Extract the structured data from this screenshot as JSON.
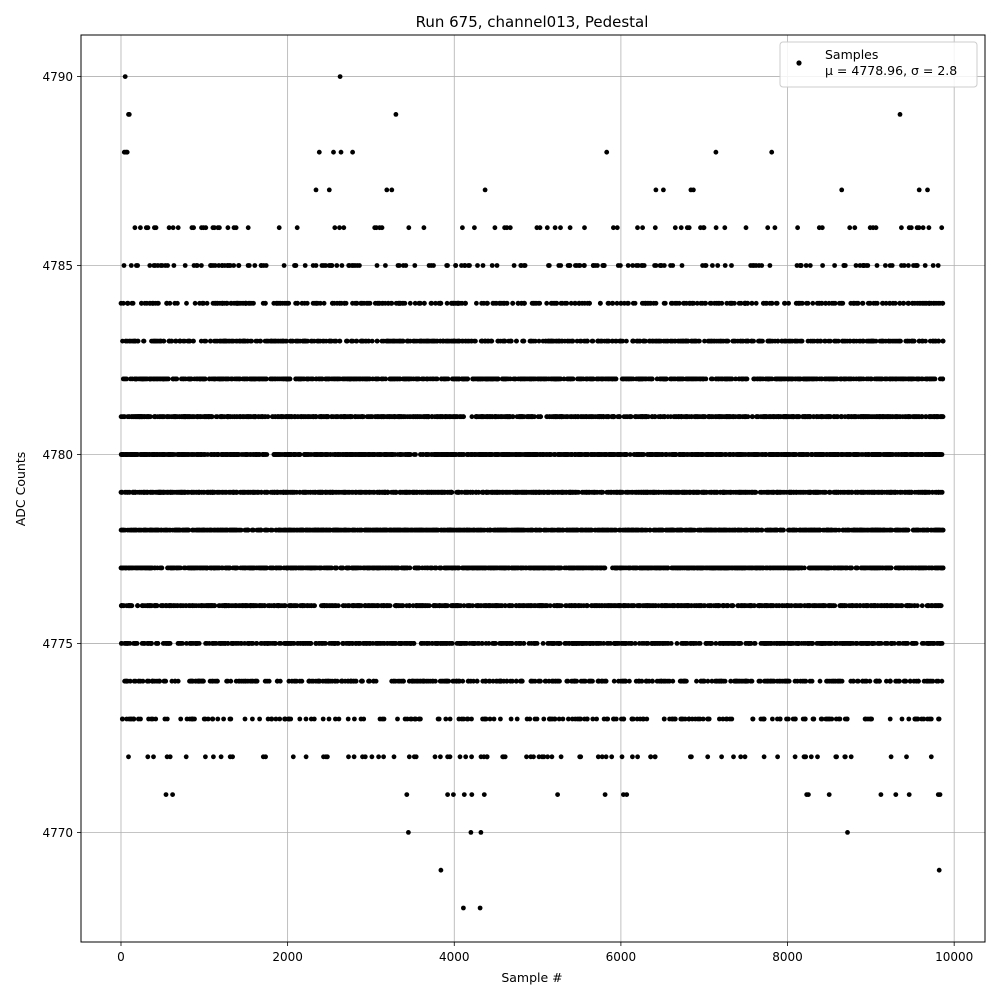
{
  "chart_data": {
    "type": "scatter",
    "title": "Run 675, channel013, Pedestal",
    "xlabel": "Sample #",
    "ylabel": "ADC Counts",
    "xlim": [
      -480,
      10370
    ],
    "ylim": [
      4767.1,
      4791.1
    ],
    "xticks": [
      0,
      2000,
      4000,
      6000,
      8000,
      10000
    ],
    "xtick_labels": [
      "0",
      "2000",
      "4000",
      "6000",
      "8000",
      "10000"
    ],
    "yticks": [
      4770,
      4775,
      4780,
      4785,
      4790
    ],
    "ytick_labels": [
      "4770",
      "4775",
      "4780",
      "4785",
      "4790"
    ],
    "grid": true,
    "legend": {
      "placement": "top-right",
      "entries": [
        {
          "label": "Samples",
          "sublabel": "μ = 4778.96, σ = 2.8",
          "marker": "circle",
          "color": "#000000"
        }
      ]
    },
    "series": [
      {
        "name": "Samples",
        "color": "#000000",
        "marker": "circle",
        "sample_count": 9870,
        "x_range": [
          0,
          9869
        ],
        "level_density": [
          {
            "y": 4768,
            "fraction": 0.0003
          },
          {
            "y": 4769,
            "fraction": 0.0003
          },
          {
            "y": 4770,
            "fraction": 0.0004
          },
          {
            "y": 4771,
            "fraction": 0.0025
          },
          {
            "y": 4772,
            "fraction": 0.009
          },
          {
            "y": 4773,
            "fraction": 0.022
          },
          {
            "y": 4774,
            "fraction": 0.045
          },
          {
            "y": 4775,
            "fraction": 0.07
          },
          {
            "y": 4776,
            "fraction": 0.09
          },
          {
            "y": 4777,
            "fraction": 0.106
          },
          {
            "y": 4778,
            "fraction": 0.118
          },
          {
            "y": 4779,
            "fraction": 0.122
          },
          {
            "y": 4780,
            "fraction": 0.118
          },
          {
            "y": 4781,
            "fraction": 0.1
          },
          {
            "y": 4782,
            "fraction": 0.083
          },
          {
            "y": 4783,
            "fraction": 0.06
          },
          {
            "y": 4784,
            "fraction": 0.04
          },
          {
            "y": 4785,
            "fraction": 0.018
          },
          {
            "y": 4786,
            "fraction": 0.008
          },
          {
            "y": 4787,
            "fraction": 0.003
          },
          {
            "y": 4788,
            "fraction": 0.0012
          },
          {
            "y": 4789,
            "fraction": 0.0004
          },
          {
            "y": 4790,
            "fraction": 0.0002
          }
        ],
        "points": [
          {
            "x": 50,
            "y": 4790
          },
          {
            "x": 2630,
            "y": 4790
          },
          {
            "x": 90,
            "y": 4789
          },
          {
            "x": 100,
            "y": 4789
          },
          {
            "x": 3300,
            "y": 4789
          },
          {
            "x": 9350,
            "y": 4789
          },
          {
            "x": 40,
            "y": 4788
          },
          {
            "x": 60,
            "y": 4788
          },
          {
            "x": 75,
            "y": 4788
          },
          {
            "x": 2380,
            "y": 4788
          },
          {
            "x": 2550,
            "y": 4788
          },
          {
            "x": 2640,
            "y": 4788
          },
          {
            "x": 2780,
            "y": 4788
          },
          {
            "x": 5830,
            "y": 4788
          },
          {
            "x": 7140,
            "y": 4788
          },
          {
            "x": 7810,
            "y": 4788
          },
          {
            "x": 4370,
            "y": 4787
          },
          {
            "x": 6420,
            "y": 4787
          },
          {
            "x": 6510,
            "y": 4787
          },
          {
            "x": 6840,
            "y": 4787
          },
          {
            "x": 6870,
            "y": 4787
          },
          {
            "x": 8650,
            "y": 4787
          },
          {
            "x": 9580,
            "y": 4787
          },
          {
            "x": 9680,
            "y": 4787
          },
          {
            "x": 2340,
            "y": 4787
          },
          {
            "x": 2500,
            "y": 4787
          },
          {
            "x": 3190,
            "y": 4787
          },
          {
            "x": 3250,
            "y": 4787
          },
          {
            "x": 3450,
            "y": 4770
          },
          {
            "x": 4200,
            "y": 4770
          },
          {
            "x": 4320,
            "y": 4770
          },
          {
            "x": 8720,
            "y": 4770
          },
          {
            "x": 3840,
            "y": 4769
          },
          {
            "x": 9820,
            "y": 4769
          },
          {
            "x": 4110,
            "y": 4768
          },
          {
            "x": 4310,
            "y": 4768
          },
          {
            "x": 540,
            "y": 4771
          },
          {
            "x": 620,
            "y": 4771
          },
          {
            "x": 3430,
            "y": 4771
          },
          {
            "x": 3920,
            "y": 4771
          },
          {
            "x": 3990,
            "y": 4771
          },
          {
            "x": 4120,
            "y": 4771
          },
          {
            "x": 4210,
            "y": 4771
          },
          {
            "x": 4360,
            "y": 4771
          },
          {
            "x": 5240,
            "y": 4771
          },
          {
            "x": 5810,
            "y": 4771
          },
          {
            "x": 6030,
            "y": 4771
          },
          {
            "x": 6070,
            "y": 4771
          },
          {
            "x": 8230,
            "y": 4771
          },
          {
            "x": 8250,
            "y": 4771
          },
          {
            "x": 8500,
            "y": 4771
          },
          {
            "x": 9120,
            "y": 4771
          },
          {
            "x": 9300,
            "y": 4771
          },
          {
            "x": 9460,
            "y": 4771
          },
          {
            "x": 9810,
            "y": 4771
          },
          {
            "x": 9830,
            "y": 4771
          }
        ]
      }
    ]
  }
}
